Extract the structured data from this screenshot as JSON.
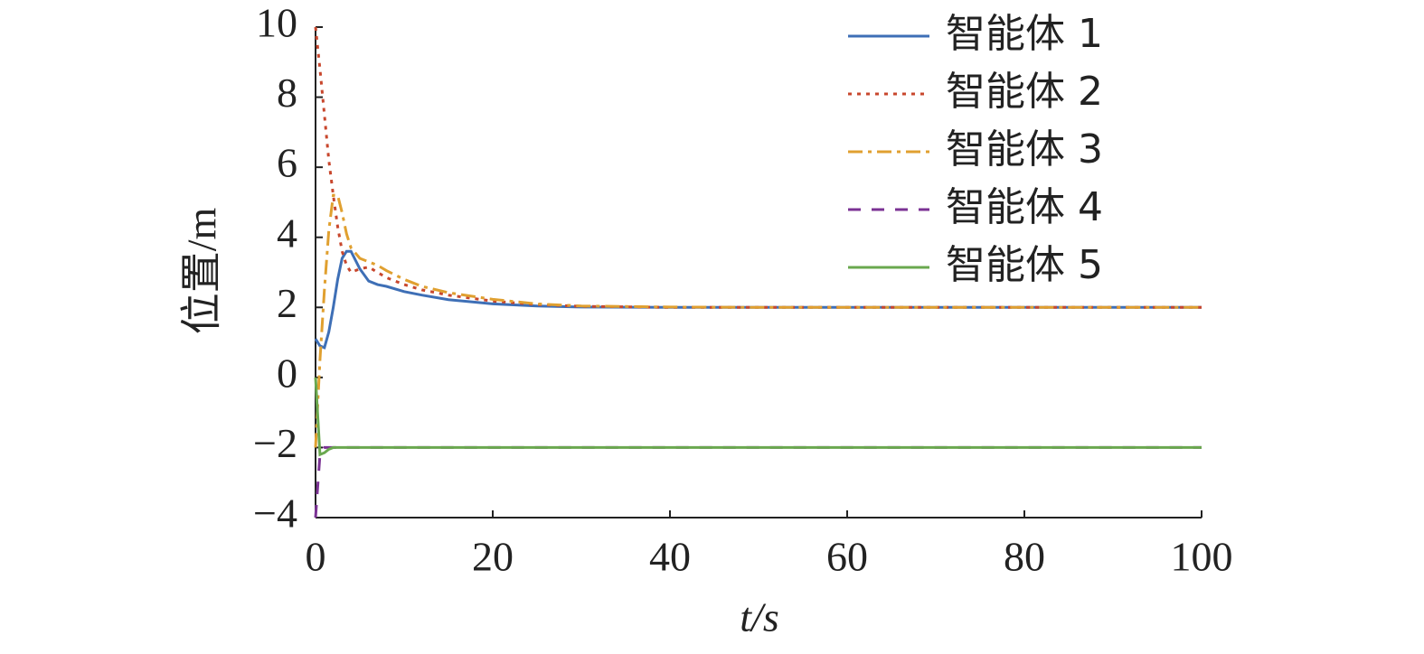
{
  "chart_data": {
    "type": "line",
    "xlabel": "t/s",
    "ylabel": "位置/m",
    "x": [
      0,
      0.5,
      1,
      1.5,
      2,
      2.5,
      3,
      3.5,
      4,
      5,
      6,
      7,
      8,
      10,
      12,
      15,
      20,
      25,
      30,
      40,
      50,
      60,
      70,
      80,
      90,
      100
    ],
    "series": [
      {
        "name": "智能体 1",
        "color": "#3e6fb6",
        "style": "solid",
        "values": [
          1.1,
          0.9,
          0.85,
          1.3,
          2.0,
          2.8,
          3.4,
          3.6,
          3.6,
          3.1,
          2.75,
          2.65,
          2.6,
          2.45,
          2.35,
          2.22,
          2.1,
          2.04,
          2.01,
          2,
          2,
          2,
          2,
          2,
          2,
          2
        ]
      },
      {
        "name": "智能体 2",
        "color": "#c8472d",
        "style": "dotted",
        "values": [
          10,
          8.8,
          7.5,
          6.2,
          5.2,
          4.3,
          3.6,
          3.2,
          3.0,
          3.1,
          3.15,
          3.0,
          2.85,
          2.65,
          2.5,
          2.35,
          2.18,
          2.08,
          2.03,
          2,
          2,
          2,
          2,
          2,
          2,
          2
        ]
      },
      {
        "name": "智能体 3",
        "color": "#e0a030",
        "style": "dashdot",
        "values": [
          -2,
          0.5,
          2.5,
          4.2,
          5.2,
          5.2,
          4.7,
          4.1,
          3.7,
          3.4,
          3.3,
          3.2,
          3.05,
          2.8,
          2.6,
          2.42,
          2.23,
          2.1,
          2.04,
          2.01,
          2,
          2,
          2,
          2,
          2,
          2
        ]
      },
      {
        "name": "智能体 4",
        "color": "#7b3294",
        "style": "dashed",
        "values": [
          -4,
          -2.2,
          -2.0,
          -2,
          -2,
          -2,
          -2,
          -2,
          -2,
          -2,
          -2,
          -2,
          -2,
          -2,
          -2,
          -2,
          -2,
          -2,
          -2,
          -2,
          -2,
          -2,
          -2,
          -2,
          -2,
          -2
        ]
      },
      {
        "name": "智能体 5",
        "color": "#6aa84f",
        "style": "solid",
        "values": [
          0,
          -2.2,
          -2.15,
          -2.05,
          -2,
          -2,
          -2,
          -2,
          -2,
          -2,
          -2,
          -2,
          -2,
          -2,
          -2,
          -2,
          -2,
          -2,
          -2,
          -2,
          -2,
          -2,
          -2,
          -2,
          -2,
          -2
        ]
      }
    ],
    "xlim": [
      0,
      100
    ],
    "xticks": [
      0,
      20,
      40,
      60,
      80,
      100
    ],
    "ylim": [
      -4,
      10
    ],
    "yticks": [
      {
        "value": -4,
        "label": "−4"
      },
      {
        "value": -2,
        "label": "−2"
      },
      0,
      2,
      4,
      6,
      8,
      10
    ],
    "grid": false,
    "legend": "top-right"
  }
}
